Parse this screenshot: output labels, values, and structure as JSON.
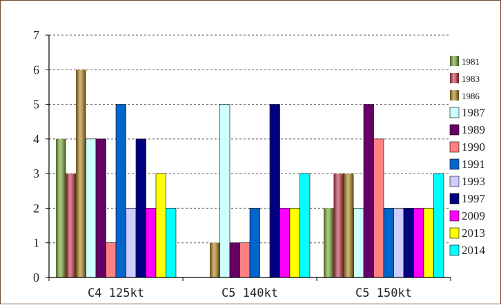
{
  "chart_data": {
    "type": "bar",
    "title": "",
    "xlabel": "",
    "ylabel": "",
    "ylim": [
      0,
      7
    ],
    "yticks": [
      "0",
      "1",
      "2",
      "3",
      "4",
      "5",
      "6",
      "7"
    ],
    "grid": true,
    "legend_position": "right",
    "categories": [
      "C4 125kt",
      "C5 140kt",
      "C5 150kt"
    ],
    "series": [
      {
        "name": "1981",
        "values": [
          4,
          0,
          2
        ],
        "color": "#6f9a2c",
        "style": "cylinder"
      },
      {
        "name": "1983",
        "values": [
          3,
          0,
          3
        ],
        "color": "#b03040",
        "style": "cylinder"
      },
      {
        "name": "1986",
        "values": [
          6,
          1,
          3
        ],
        "color": "#a07818",
        "style": "cylinder"
      },
      {
        "name": "1987",
        "values": [
          4,
          5,
          2
        ],
        "color": "#ccffff",
        "style": "flat"
      },
      {
        "name": "1989",
        "values": [
          4,
          1,
          5
        ],
        "color": "#660066",
        "style": "flat"
      },
      {
        "name": "1990",
        "values": [
          1,
          1,
          4
        ],
        "color": "#ff8080",
        "style": "flat"
      },
      {
        "name": "1991",
        "values": [
          5,
          2,
          2
        ],
        "color": "#0066cc",
        "style": "flat"
      },
      {
        "name": "1993",
        "values": [
          2,
          0,
          2
        ],
        "color": "#ccccff",
        "style": "flat"
      },
      {
        "name": "1997",
        "values": [
          4,
          5,
          2
        ],
        "color": "#000080",
        "style": "flat"
      },
      {
        "name": "2009",
        "values": [
          2,
          2,
          2
        ],
        "color": "#ff00ff",
        "style": "flat"
      },
      {
        "name": "2013",
        "values": [
          3,
          2,
          2
        ],
        "color": "#ffff00",
        "style": "flat"
      },
      {
        "name": "2014",
        "values": [
          2,
          3,
          3
        ],
        "color": "#00ffff",
        "style": "flat"
      }
    ]
  }
}
